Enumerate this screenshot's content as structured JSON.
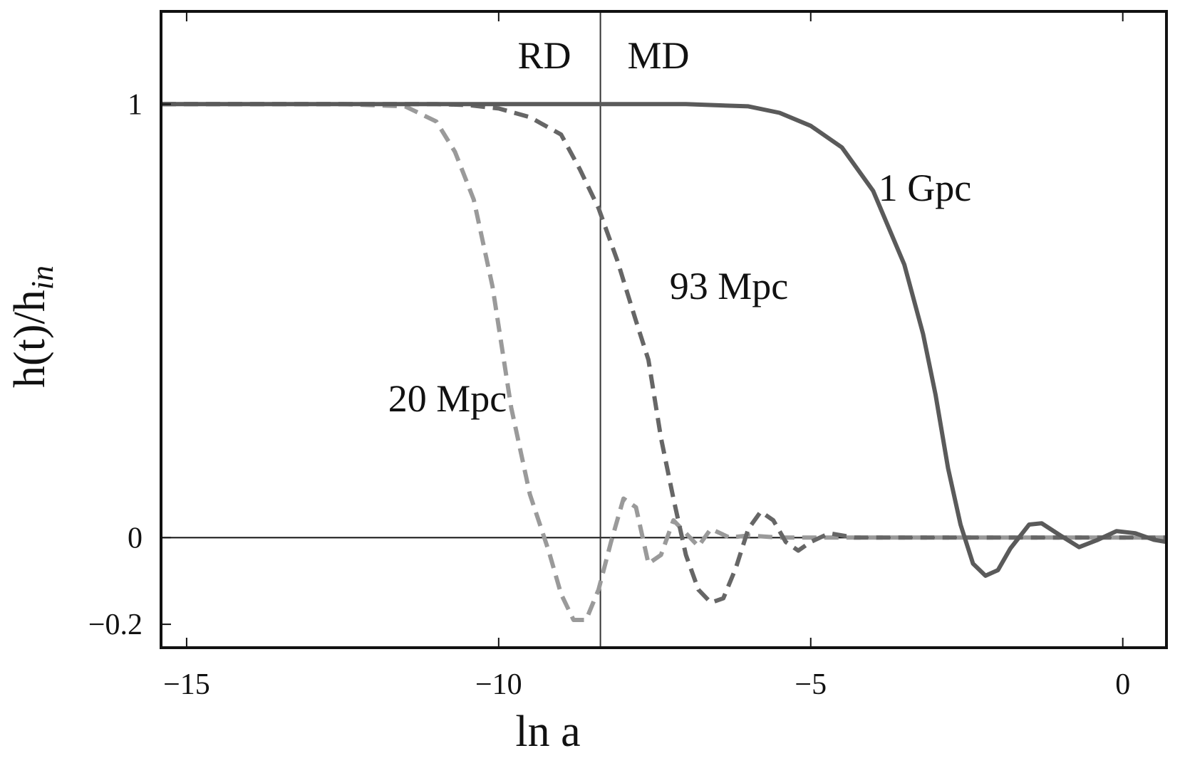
{
  "chart_data": {
    "type": "line",
    "xlabel": "ln a",
    "ylabel": "h(t)/h",
    "ylabel_subscript": "in",
    "xlim": [
      -15.41,
      0.7
    ],
    "ylim": [
      -0.254,
      1.214
    ],
    "xticks": [
      {
        "value": -15,
        "label": "−15"
      },
      {
        "value": -10,
        "label": "−10"
      },
      {
        "value": -5,
        "label": "−5"
      },
      0
    ],
    "yticks": [
      {
        "value": -0.2,
        "label": "−0.2"
      },
      0,
      1
    ],
    "vline": -8.37,
    "hline": 0,
    "annotations": [
      "RD",
      "MD",
      "1 Gpc",
      "93 Mpc",
      "20 Mpc"
    ],
    "series": [
      {
        "name": "1 Gpc",
        "color": "#5a5a5a",
        "dashed": false,
        "x": [
          -15.4,
          -10,
          -7,
          -6,
          -5.5,
          -5,
          -4.5,
          -4,
          -3.5,
          -3.2,
          -3,
          -2.8,
          -2.6,
          -2.4,
          -2.2,
          -2,
          -1.8,
          -1.5,
          -1.3,
          -1,
          -0.7,
          -0.4,
          -0.1,
          0.2,
          0.5,
          0.7
        ],
        "values": [
          1,
          1,
          1,
          0.995,
          0.98,
          0.95,
          0.9,
          0.8,
          0.63,
          0.47,
          0.33,
          0.16,
          0.03,
          -0.06,
          -0.088,
          -0.075,
          -0.025,
          0.03,
          0.033,
          0.005,
          -0.022,
          -0.005,
          0.015,
          0.01,
          -0.005,
          -0.01
        ]
      },
      {
        "name": "93 Mpc",
        "color": "#666666",
        "dashed": true,
        "x": [
          -15.4,
          -11,
          -10.5,
          -10,
          -9.5,
          -9,
          -8.7,
          -8.4,
          -8.1,
          -7.8,
          -7.6,
          -7.4,
          -7.2,
          -7.0,
          -6.8,
          -6.6,
          -6.4,
          -6.2,
          -6.0,
          -5.8,
          -5.6,
          -5.4,
          -5.2,
          -5.0,
          -4.7,
          -4.3,
          -3,
          0.7
        ],
        "values": [
          1,
          1,
          0.998,
          0.99,
          0.97,
          0.93,
          0.85,
          0.76,
          0.64,
          0.5,
          0.41,
          0.23,
          0.09,
          -0.04,
          -0.12,
          -0.15,
          -0.14,
          -0.07,
          0.02,
          0.06,
          0.04,
          -0.01,
          -0.03,
          -0.01,
          0.01,
          0,
          0,
          0
        ]
      },
      {
        "name": "20 Mpc",
        "color": "#9a9a9a",
        "dashed": true,
        "x": [
          -15.4,
          -12.5,
          -11.5,
          -11,
          -10.7,
          -10.4,
          -10.1,
          -9.8,
          -9.5,
          -9.2,
          -9.0,
          -8.8,
          -8.6,
          -8.4,
          -8.2,
          -8.0,
          -7.8,
          -7.6,
          -7.4,
          -7.2,
          -7.0,
          -6.8,
          -6.6,
          -6.3,
          -6.0,
          -5.5,
          -4,
          0.7
        ],
        "values": [
          1,
          1,
          0.995,
          0.96,
          0.89,
          0.78,
          0.58,
          0.3,
          0.1,
          -0.03,
          -0.13,
          -0.19,
          -0.19,
          -0.12,
          -0.01,
          0.09,
          0.07,
          -0.06,
          -0.04,
          0.04,
          0.01,
          -0.02,
          0.02,
          0,
          0.005,
          0,
          0,
          0
        ]
      }
    ]
  }
}
